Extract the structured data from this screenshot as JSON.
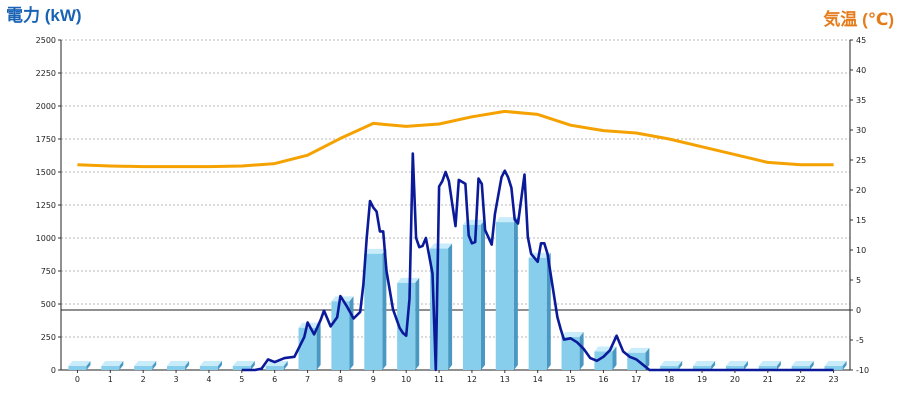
{
  "chart_data": {
    "type": "bar",
    "title": "",
    "ylabel": "電力 (kW)",
    "y2label": "気温 (℃)",
    "categories": [
      "0",
      "1",
      "2",
      "3",
      "4",
      "5",
      "6",
      "7",
      "8",
      "9",
      "10",
      "11",
      "12",
      "13",
      "14",
      "15",
      "16",
      "17",
      "18",
      "19",
      "20",
      "21",
      "22",
      "23"
    ],
    "ylim": [
      0,
      2500
    ],
    "y2lim": [
      -10,
      45
    ],
    "yticks": [
      "0",
      "250",
      "500",
      "750",
      "1000",
      "1250",
      "1500",
      "1750",
      "2000",
      "2250",
      "2500"
    ],
    "y2ticks": [
      "-10",
      "-5",
      "0",
      "5",
      "10",
      "15",
      "20",
      "25",
      "30",
      "35",
      "40",
      "45"
    ],
    "grid": true,
    "series": [
      {
        "kind": "bar",
        "axis": "left",
        "values": [
          30,
          30,
          30,
          30,
          30,
          30,
          30,
          320,
          520,
          880,
          660,
          920,
          1100,
          1120,
          850,
          250,
          140,
          130,
          30,
          30,
          30,
          30,
          30,
          30
        ]
      },
      {
        "kind": "line",
        "axis": "left",
        "x": [
          5.0,
          5.4,
          5.6,
          5.8,
          6.0,
          6.3,
          6.6,
          6.9,
          7.0,
          7.2,
          7.4,
          7.5,
          7.7,
          7.9,
          8.0,
          8.2,
          8.4,
          8.6,
          8.7,
          8.8,
          8.9,
          9.0,
          9.1,
          9.2,
          9.3,
          9.4,
          9.6,
          9.8,
          9.9,
          10.0,
          10.1,
          10.2,
          10.3,
          10.4,
          10.5,
          10.6,
          10.8,
          10.9,
          11.0,
          11.1,
          11.2,
          11.3,
          11.5,
          11.6,
          11.8,
          11.9,
          12.0,
          12.1,
          12.2,
          12.3,
          12.4,
          12.6,
          12.7,
          12.9,
          13.0,
          13.1,
          13.2,
          13.3,
          13.4,
          13.6,
          13.7,
          13.8,
          14.0,
          14.1,
          14.2,
          14.3,
          14.4,
          14.6,
          14.7,
          14.8,
          15.0,
          15.2,
          15.4,
          15.6,
          15.8,
          16.0,
          16.2,
          16.4,
          16.5,
          16.6,
          16.8,
          17.0,
          17.2,
          17.4,
          17.6,
          17.8,
          18.0,
          20.0,
          23.0
        ],
        "values": [
          0,
          0,
          10,
          80,
          60,
          90,
          100,
          250,
          360,
          270,
          380,
          450,
          330,
          400,
          560,
          480,
          390,
          440,
          650,
          1000,
          1280,
          1230,
          1200,
          1050,
          1050,
          750,
          460,
          320,
          280,
          260,
          540,
          1640,
          1000,
          930,
          940,
          1000,
          730,
          0,
          1390,
          1430,
          1500,
          1430,
          1090,
          1440,
          1410,
          1020,
          960,
          970,
          1450,
          1410,
          1060,
          950,
          1180,
          1460,
          1510,
          1460,
          1380,
          1140,
          1110,
          1480,
          1010,
          880,
          820,
          960,
          960,
          880,
          720,
          400,
          310,
          230,
          240,
          210,
          160,
          90,
          70,
          100,
          150,
          260,
          200,
          140,
          100,
          80,
          40,
          0,
          0,
          0,
          0,
          0,
          0
        ]
      },
      {
        "kind": "line",
        "axis": "right",
        "values": [
          24.2,
          24.0,
          23.9,
          23.9,
          23.9,
          24.0,
          24.4,
          25.8,
          28.6,
          31.1,
          30.6,
          31.0,
          32.2,
          33.1,
          32.6,
          30.8,
          29.9,
          29.5,
          28.5,
          27.2,
          25.9,
          24.6,
          24.2,
          24.2
        ]
      }
    ]
  }
}
